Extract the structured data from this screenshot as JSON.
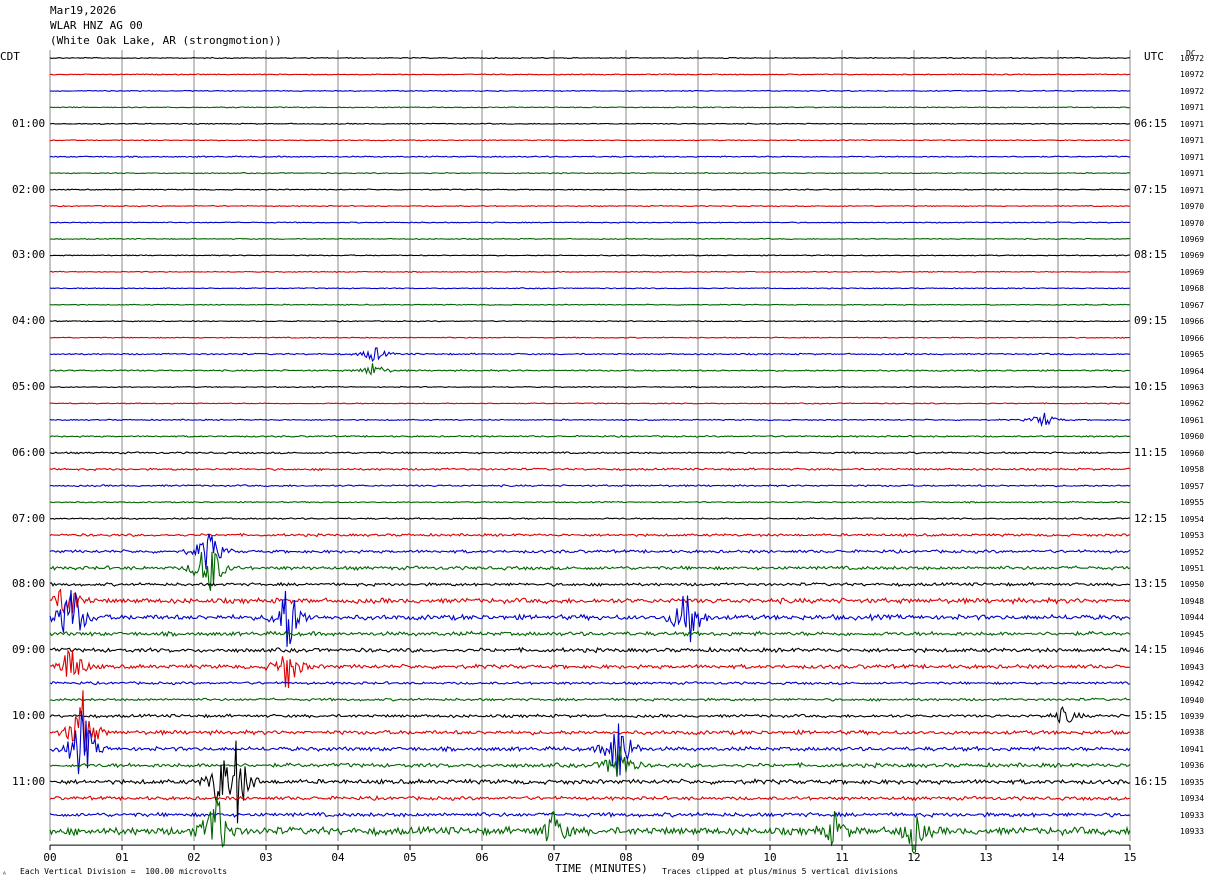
{
  "header": {
    "date": "Mar19,2026",
    "station": "WLAR HNZ AG 00",
    "location": "(White Oak Lake, AR (strongmotion))"
  },
  "left_tz_label": "CDT",
  "right_tz_label": "UTC",
  "dc_label": "DC",
  "xlabel": "TIME (MINUTES)",
  "footer": {
    "scale_note": "Each Vertical Division =  100.00 microvolts",
    "clip_note": "Traces clipped at plus/minus 5 vertical divisions",
    "corner_mark": "ᴬ"
  },
  "colors": {
    "trace_cycle": [
      "#000000",
      "#dd0000",
      "#0000cc",
      "#006600"
    ],
    "grid": "#888888"
  },
  "chart_data": {
    "type": "line",
    "xlim": [
      0,
      15
    ],
    "x_ticks": [
      "00",
      "01",
      "02",
      "03",
      "04",
      "05",
      "06",
      "07",
      "08",
      "09",
      "10",
      "11",
      "12",
      "13",
      "14",
      "15"
    ],
    "cdt_time_labels": [
      "01:00",
      "02:00",
      "03:00",
      "04:00",
      "05:00",
      "06:00",
      "07:00",
      "08:00",
      "09:00",
      "10:00",
      "11:00"
    ],
    "utc_time_labels": [
      "06:15",
      "07:15",
      "08:15",
      "09:15",
      "10:15",
      "11:15",
      "12:15",
      "13:15",
      "14:15",
      "15:15",
      "16:15"
    ],
    "dc_values": [
      "10972",
      "10972",
      "10972",
      "10971",
      "10971",
      "10971",
      "10971",
      "10971",
      "10971",
      "10970",
      "10970",
      "10969",
      "10969",
      "10969",
      "10968",
      "10967",
      "10966",
      "10966",
      "10965",
      "10964",
      "10963",
      "10962",
      "10961",
      "10960",
      "10960",
      "10958",
      "10957",
      "10955",
      "10954",
      "10953",
      "10952",
      "10951",
      "10950",
      "10948",
      "10944",
      "10945",
      "10946",
      "10943",
      "10942",
      "10940",
      "10939",
      "10938",
      "10941",
      "10936",
      "10935",
      "10934",
      "10933",
      "10933"
    ],
    "trace_amplitude_level": [
      0.4,
      0.4,
      0.4,
      0.4,
      0.4,
      0.4,
      0.5,
      0.4,
      0.4,
      0.4,
      0.4,
      0.4,
      0.4,
      0.4,
      0.4,
      0.4,
      0.4,
      0.4,
      0.6,
      0.6,
      0.4,
      0.4,
      0.5,
      0.6,
      0.7,
      0.8,
      0.7,
      0.5,
      0.6,
      1.0,
      1.2,
      1.4,
      1.2,
      2.0,
      2.0,
      1.6,
      1.6,
      1.6,
      1.0,
      1.0,
      1.2,
      1.6,
      1.6,
      1.6,
      1.8,
      1.4,
      1.6,
      3.0
    ],
    "events": [
      {
        "trace": 30,
        "minute": 2.2,
        "size": 3.0
      },
      {
        "trace": 31,
        "minute": 2.2,
        "size": 5.0
      },
      {
        "trace": 33,
        "minute": 0.25,
        "size": 3.0
      },
      {
        "trace": 34,
        "minute": 0.3,
        "size": 5.0
      },
      {
        "trace": 34,
        "minute": 3.3,
        "size": 5.0
      },
      {
        "trace": 34,
        "minute": 8.85,
        "size": 5.0
      },
      {
        "trace": 37,
        "minute": 0.3,
        "size": 3.0
      },
      {
        "trace": 37,
        "minute": 3.3,
        "size": 3.0
      },
      {
        "trace": 41,
        "minute": 0.45,
        "size": 5.0
      },
      {
        "trace": 42,
        "minute": 0.45,
        "size": 5.0
      },
      {
        "trace": 42,
        "minute": 7.9,
        "size": 5.0
      },
      {
        "trace": 43,
        "minute": 7.9,
        "size": 3.0
      },
      {
        "trace": 44,
        "minute": 2.6,
        "size": 5.0
      },
      {
        "trace": 44,
        "minute": 2.35,
        "size": 3.0
      },
      {
        "trace": 47,
        "minute": 2.3,
        "size": 5.0
      },
      {
        "trace": 47,
        "minute": 7.0,
        "size": 2.5
      },
      {
        "trace": 47,
        "minute": 10.9,
        "size": 2.0
      },
      {
        "trace": 47,
        "minute": 12.0,
        "size": 2.5
      },
      {
        "trace": 22,
        "minute": 13.8,
        "size": 1.0
      },
      {
        "trace": 19,
        "minute": 4.5,
        "size": 1.0
      },
      {
        "trace": 18,
        "minute": 4.5,
        "size": 1.0
      },
      {
        "trace": 40,
        "minute": 14.1,
        "size": 1.2
      }
    ]
  }
}
